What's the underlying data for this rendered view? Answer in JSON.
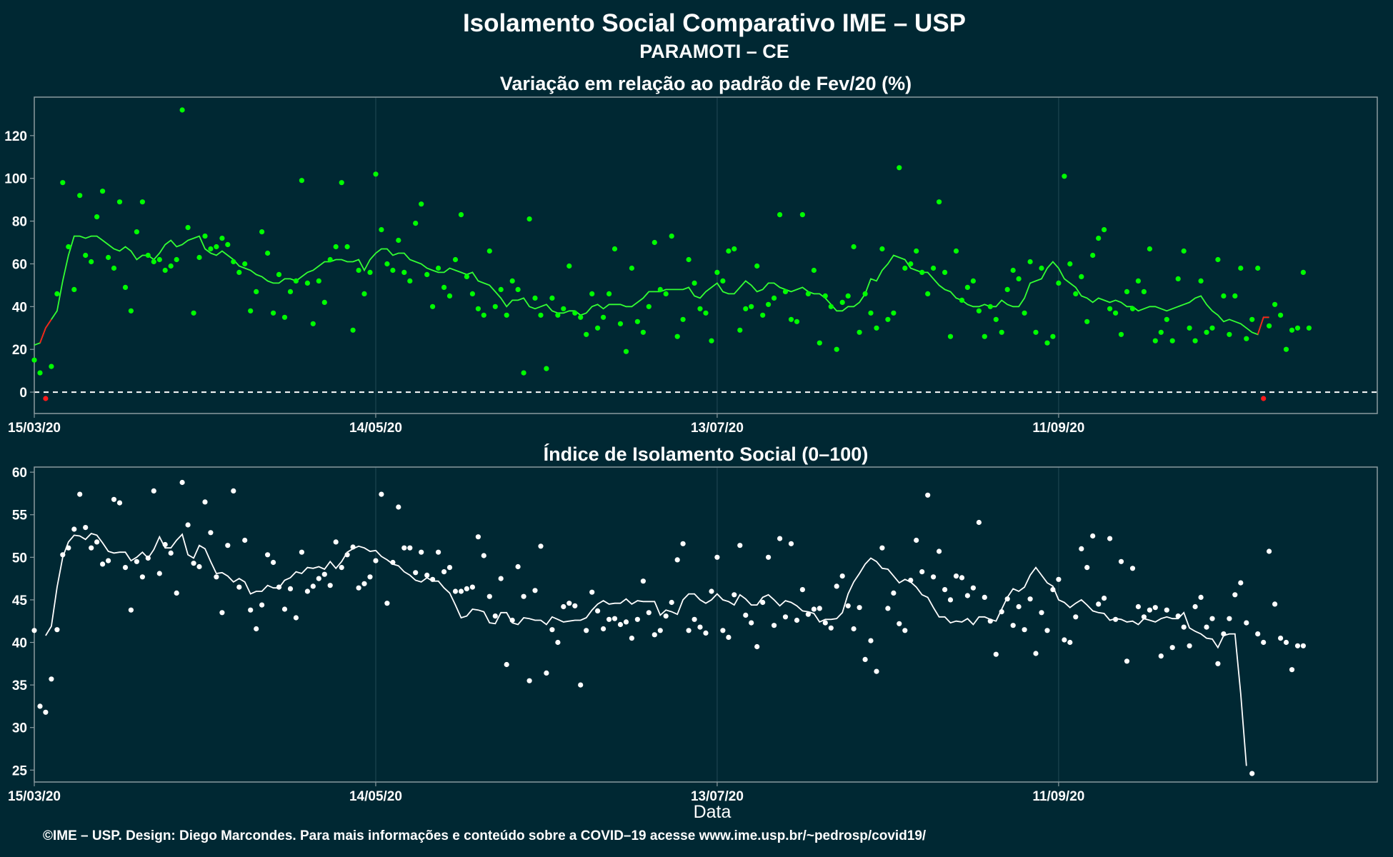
{
  "title": "Isolamento Social Comparativo IME – USP",
  "subtitle": "PARAMOTI – CE",
  "footer": "©IME – USP. Design: Diego Marcondes. Para mais informações e conteúdo sobre a COVID–19 acesse www.ime.usp.br/~pedrosp/covid19/",
  "colors": {
    "background": "#002833",
    "panel_border": "#8a9a9f",
    "grid": "#1d4450",
    "top_points": "#00ff00",
    "top_line": "#33ff33",
    "negative": "#ff1a1a",
    "bottom_points": "#ffffff",
    "bottom_line": "#ffffff",
    "zero_line": "#ffffff"
  },
  "chart_data": [
    {
      "type": "scatter",
      "title": "Variação em relação ao padrão de Fev/20 (%)",
      "xlabel": "",
      "ylabel": "",
      "x_start": "2020-03-15",
      "x_ticks": [
        "15/03/20",
        "14/05/20",
        "13/07/20",
        "11/09/20"
      ],
      "xlim": [
        "2020-03-15",
        "2020-11-06"
      ],
      "ylim": [
        -10,
        138
      ],
      "y_ticks": [
        0,
        20,
        40,
        60,
        80,
        100,
        120
      ],
      "grid": true,
      "reference_line": 0,
      "series": [
        {
          "values": [
            15,
            9,
            -3,
            12,
            46,
            98,
            68,
            48,
            92,
            64,
            61,
            82,
            94,
            63,
            58,
            89,
            49,
            38,
            75,
            89,
            64,
            61,
            62,
            57,
            59,
            62,
            132,
            77,
            37,
            63,
            73,
            67,
            68,
            72,
            69,
            61,
            56,
            60,
            38,
            47,
            75,
            65,
            37,
            55,
            35,
            47,
            52,
            99,
            51,
            32,
            52,
            42,
            62,
            68,
            98,
            68,
            29,
            57,
            46,
            56,
            102,
            76,
            60,
            57,
            71,
            56,
            52,
            79,
            88,
            55,
            40,
            58,
            49,
            45,
            62,
            83,
            54,
            46,
            39,
            36,
            66,
            40,
            48,
            36,
            52,
            48,
            9,
            81,
            44,
            36,
            11,
            44,
            36,
            39,
            59,
            37,
            35,
            27,
            46,
            30,
            35,
            46,
            67,
            32,
            19,
            58,
            33,
            28,
            40,
            70,
            48,
            46,
            73,
            26,
            34,
            62,
            51,
            39,
            37,
            24,
            56,
            52,
            66,
            67,
            29,
            39,
            40,
            59,
            36,
            41,
            44,
            83,
            47,
            34,
            33,
            83,
            46,
            57,
            23,
            45,
            40,
            20,
            42,
            45,
            68,
            28,
            46,
            37,
            30,
            67,
            34,
            37,
            105,
            58,
            60,
            66,
            56,
            46,
            58,
            89,
            56,
            26,
            66,
            43,
            49,
            52,
            38,
            26,
            40,
            34,
            28,
            48,
            57,
            53,
            37,
            61,
            28,
            58,
            23,
            26,
            51,
            101,
            60,
            46,
            54,
            33,
            64,
            72,
            76,
            39,
            37,
            27,
            47,
            39,
            52,
            47,
            67,
            24,
            28,
            34,
            24,
            53,
            66,
            30,
            24,
            52,
            28,
            30,
            62,
            45,
            27,
            45,
            58,
            25,
            34,
            58,
            -3,
            31,
            41,
            36,
            20,
            29,
            30,
            56,
            30
          ]
        },
        {
          "values": [
            22,
            23,
            30,
            34,
            38,
            52,
            64,
            73,
            73,
            72,
            73,
            73,
            71,
            69,
            67,
            66,
            68,
            66,
            62,
            64,
            64,
            62,
            65,
            69,
            71,
            68,
            69,
            71,
            72,
            73,
            67,
            65,
            64,
            66,
            64,
            62,
            59,
            58,
            57,
            55,
            54,
            52,
            51,
            51,
            53,
            53,
            52,
            54,
            56,
            57,
            59,
            61,
            61,
            62,
            62,
            61,
            61,
            62,
            57,
            62,
            65,
            67,
            67,
            64,
            65,
            65,
            62,
            61,
            60,
            58,
            57,
            56,
            56,
            58,
            57,
            56,
            55,
            56,
            52,
            51,
            50,
            47,
            44,
            40,
            43,
            43,
            44,
            40,
            39,
            40,
            41,
            38,
            37,
            37,
            38,
            38,
            36,
            37,
            40,
            41,
            39,
            41,
            41,
            41,
            40,
            40,
            42,
            44,
            47,
            47,
            47,
            48,
            48,
            48,
            48,
            49,
            45,
            44,
            47,
            49,
            51,
            47,
            46,
            46,
            49,
            52,
            50,
            47,
            48,
            51,
            51,
            49,
            48,
            47,
            48,
            49,
            47,
            46,
            46,
            44,
            41,
            38,
            38,
            40,
            40,
            42,
            46,
            53,
            52,
            57,
            60,
            64,
            63,
            62,
            58,
            57,
            56,
            56,
            53,
            50,
            48,
            47,
            44,
            43,
            41,
            40,
            40,
            41,
            40,
            40,
            43,
            41,
            40,
            40,
            44,
            51,
            52,
            53,
            58,
            61,
            58,
            53,
            51,
            49,
            45,
            44,
            42,
            44,
            43,
            42,
            43,
            42,
            40,
            40,
            38,
            39,
            40,
            40,
            39,
            38,
            39,
            40,
            41,
            42,
            44,
            45,
            41,
            38,
            36,
            33,
            34,
            33,
            32,
            30,
            28,
            27,
            35,
            35
          ]
        }
      ]
    },
    {
      "type": "scatter",
      "title": "Índice de Isolamento Social (0–100)",
      "xlabel": "Data",
      "ylabel": "",
      "x_start": "2020-03-15",
      "x_ticks": [
        "15/03/20",
        "14/05/20",
        "13/07/20",
        "11/09/20"
      ],
      "xlim": [
        "2020-03-15",
        "2020-11-06"
      ],
      "ylim": [
        23.6,
        60.6
      ],
      "y_ticks": [
        25,
        30,
        35,
        40,
        45,
        50,
        55,
        60
      ],
      "grid": true,
      "series": [
        {
          "values": [
            41.4,
            32.5,
            31.8,
            35.7,
            41.5,
            50.3,
            51.1,
            53.3,
            57.4,
            53.5,
            51.1,
            51.8,
            49.2,
            49.6,
            56.8,
            56.4,
            48.8,
            43.8,
            49.5,
            47.7,
            49.9,
            57.8,
            48.1,
            51.5,
            50.5,
            45.8,
            58.8,
            53.8,
            49.3,
            48.9,
            56.5,
            52.9,
            47.7,
            43.5,
            51.4,
            57.8,
            46.5,
            52.0,
            43.8,
            41.6,
            44.4,
            50.3,
            49.4,
            46.5,
            43.9,
            46.3,
            42.9,
            50.6,
            46.0,
            46.6,
            47.5,
            48.0,
            46.7,
            51.8,
            48.8,
            50.3,
            51.2,
            46.4,
            46.9,
            47.7,
            49.6,
            57.4,
            44.6,
            49.4,
            55.9,
            51.1,
            51.1,
            48.2,
            50.6,
            47.9,
            47.4,
            50.6,
            48.3,
            48.8,
            46.0,
            46.0,
            46.3,
            46.5,
            52.4,
            50.2,
            45.4,
            43.1,
            47.5,
            37.4,
            42.6,
            48.9,
            45.4,
            35.5,
            46.1,
            51.3,
            36.4,
            41.5,
            40.0,
            44.2,
            44.6,
            44.3,
            35.0,
            41.4,
            45.9,
            43.7,
            41.6,
            42.7,
            42.8,
            42.1,
            42.4,
            40.5,
            42.7,
            47.2,
            43.5,
            40.9,
            41.4,
            43.1,
            44.7,
            49.7,
            51.6,
            41.4,
            42.7,
            41.8,
            41.1,
            46.0,
            50.0,
            41.4,
            40.6,
            45.6,
            51.4,
            43.2,
            42.3,
            39.5,
            44.7,
            50.0,
            42.0,
            52.2,
            43.0,
            51.6,
            42.6,
            46.2,
            43.3,
            43.9,
            44.0,
            42.3,
            41.7,
            46.6,
            47.8,
            44.3,
            41.6,
            44.1,
            38.0,
            40.2,
            36.6,
            51.1,
            44.0,
            45.8,
            42.2,
            41.4,
            47.3,
            52.0,
            48.3,
            57.3,
            47.7,
            50.7,
            46.2,
            45.0,
            47.8,
            47.6,
            45.5,
            46.4,
            54.1,
            45.3,
            42.5,
            38.6,
            43.6,
            45.1,
            42.0,
            44.2,
            41.5,
            45.1,
            38.7,
            43.5,
            41.4,
            46.2,
            47.4,
            40.3,
            40.0,
            43.0,
            51.0,
            48.8,
            52.5,
            44.5,
            45.2,
            52.2,
            42.7,
            49.5,
            37.8,
            48.7,
            44.2,
            43.0,
            43.8,
            44.1,
            38.4,
            43.8,
            39.4,
            43.1,
            41.8,
            39.6,
            44.2,
            45.3,
            41.8,
            42.8,
            37.5,
            41.0,
            42.8,
            45.6,
            47.0,
            42.3,
            24.6,
            41.0,
            40.0,
            50.7,
            44.5,
            40.5,
            40.0,
            36.8,
            39.6,
            39.6
          ]
        },
        {
          "values": [
            40.8,
            41.9,
            46.5,
            50.0,
            51.8,
            52.6,
            52.5,
            52.1,
            52.8,
            52.6,
            51.7,
            50.7,
            50.5,
            50.6,
            50.6,
            49.6,
            50.0,
            50.6,
            49.9,
            50.9,
            52.4,
            51.1,
            51.1,
            52.0,
            52.7,
            50.3,
            49.9,
            51.4,
            51.0,
            49.5,
            48.1,
            48.2,
            47.8,
            47.1,
            47.5,
            47.1,
            45.7,
            46.0,
            46.0,
            46.7,
            46.4,
            46.4,
            47.3,
            47.6,
            48.3,
            48.1,
            48.8,
            48.7,
            48.9,
            48.6,
            49.5,
            48.7,
            49.5,
            50.6,
            51.0,
            51.3,
            51.1,
            50.7,
            50.8,
            50.1,
            49.7,
            49.2,
            49.0,
            48.3,
            47.9,
            47.3,
            47.1,
            47.6,
            47.2,
            47.2,
            46.4,
            45.8,
            44.4,
            42.9,
            43.1,
            43.9,
            43.8,
            43.6,
            42.3,
            42.2,
            43.5,
            43.5,
            42.3,
            42.1,
            42.9,
            42.8,
            42.6,
            42.6,
            42.1,
            43.0,
            42.7,
            42.4,
            42.5,
            42.6,
            42.6,
            42.9,
            43.8,
            44.5,
            44.9,
            44.5,
            44.6,
            44.6,
            45.1,
            44.5,
            44.9,
            44.8,
            44.8,
            44.8,
            43.2,
            43.8,
            43.6,
            43.3,
            45.0,
            45.7,
            45.7,
            45.0,
            44.6,
            45.0,
            45.7,
            45.0,
            44.8,
            44.4,
            45.6,
            45.1,
            44.4,
            44.4,
            45.3,
            45.6,
            45.0,
            44.3,
            44.9,
            44.7,
            44.3,
            43.7,
            43.6,
            43.4,
            42.4,
            42.7,
            42.7,
            42.8,
            43.5,
            45.7,
            47.1,
            48.1,
            49.2,
            49.9,
            49.5,
            48.7,
            48.6,
            47.8,
            47.0,
            47.4,
            47.1,
            46.5,
            45.6,
            45.3,
            44.1,
            43.0,
            43.0,
            42.3,
            42.5,
            42.4,
            42.8,
            42.1,
            43.0,
            43.0,
            42.7,
            42.5,
            43.9,
            45.3,
            46.3,
            46.0,
            46.5,
            47.9,
            48.8,
            47.9,
            47.0,
            46.6,
            45.0,
            44.7,
            44.1,
            44.6,
            45.0,
            44.4,
            43.7,
            43.5,
            43.4,
            42.6,
            42.8,
            42.7,
            42.4,
            42.5,
            42.1,
            42.8,
            42.6,
            42.4,
            42.8,
            43.0,
            42.8,
            42.8,
            43.5,
            41.7,
            41.3,
            41.0,
            40.5,
            40.4,
            39.4,
            40.8,
            41.0,
            41.0,
            34.0,
            25.5
          ]
        }
      ]
    }
  ]
}
